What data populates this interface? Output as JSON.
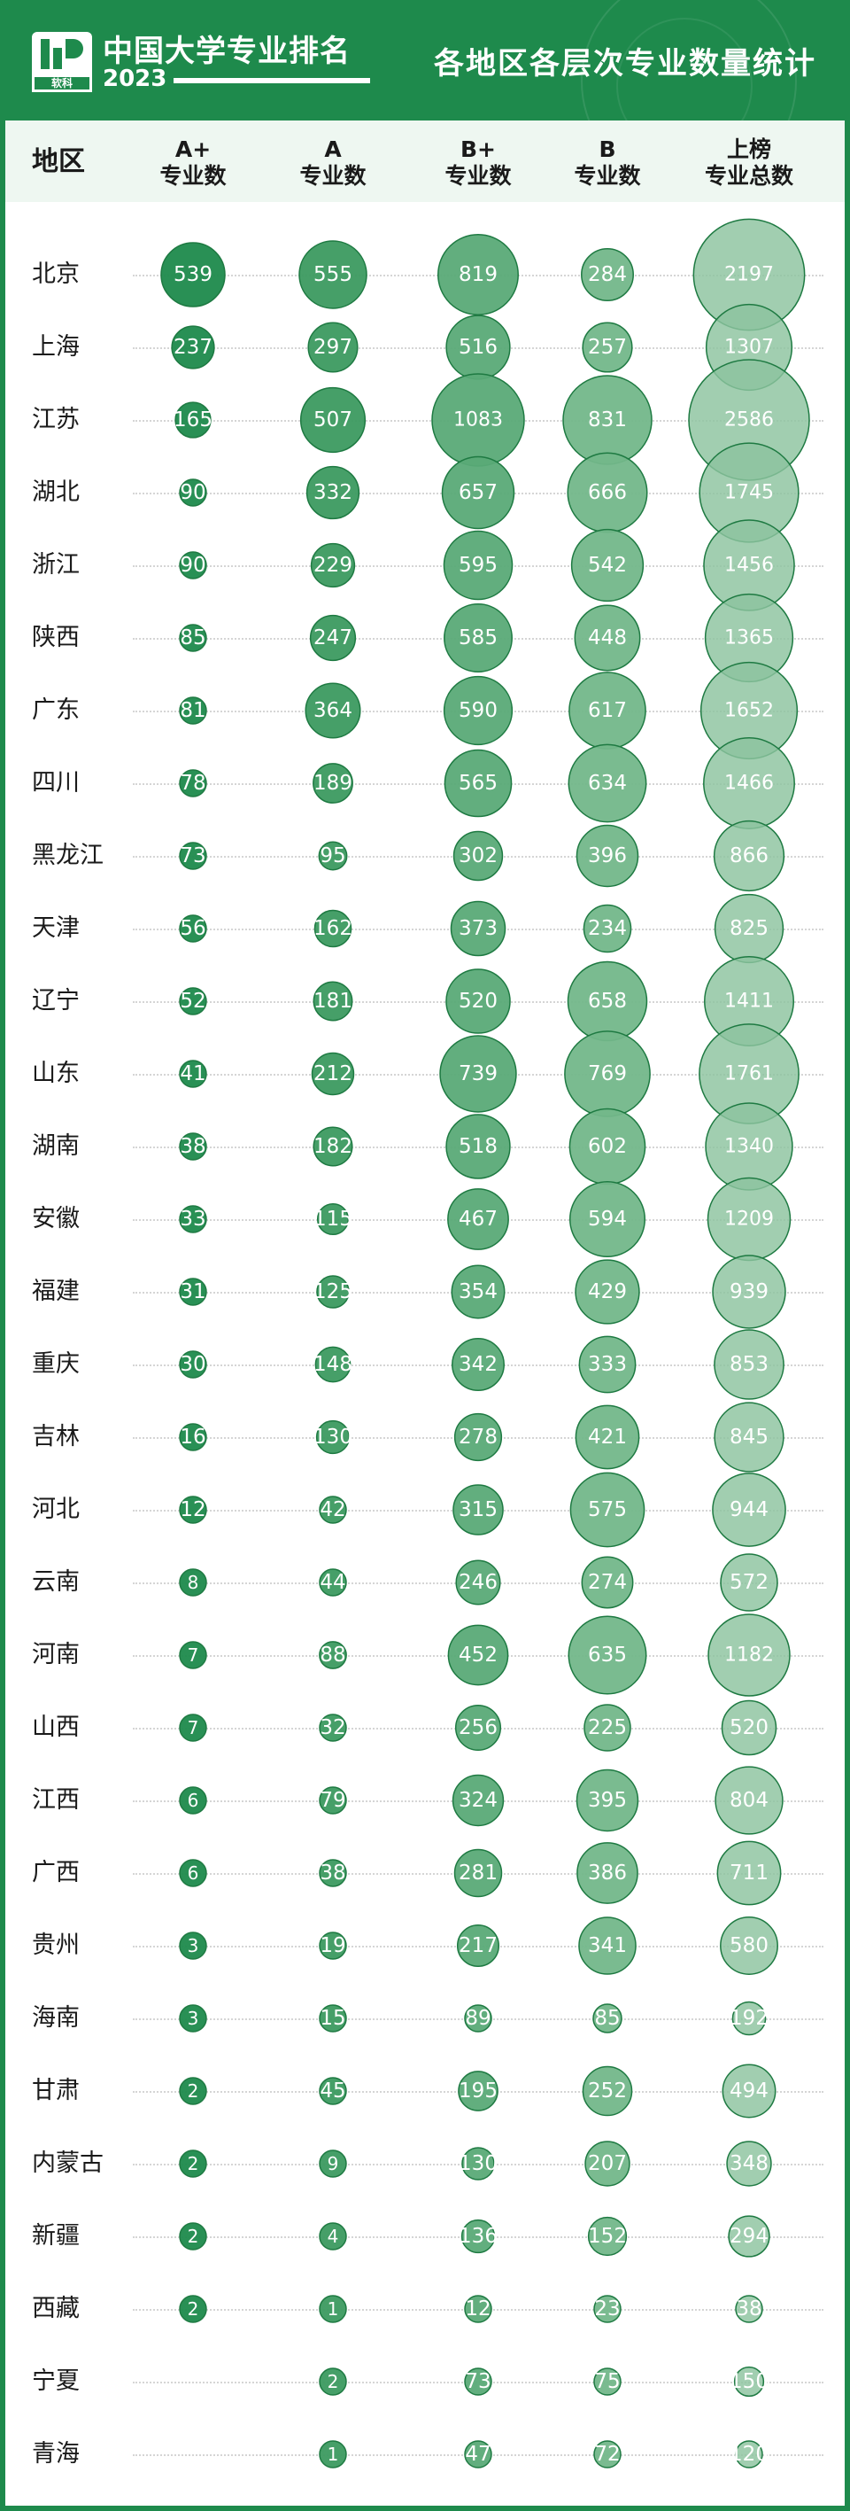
{
  "header": {
    "brand": "中国大学专业排名",
    "year": "2023",
    "logo_text": "软科",
    "title": "各地区各层次专业数量统计"
  },
  "colors": {
    "accent": "#1e8a4c",
    "header_bg": "#eef7f1"
  },
  "chart_data": {
    "type": "table",
    "title": "各地区各层次专业数量统计",
    "row_header": "地区",
    "columns": [
      {
        "key": "a_plus",
        "line1": "A+",
        "line2": "专业数"
      },
      {
        "key": "a",
        "line1": "A",
        "line2": "专业数"
      },
      {
        "key": "b_plus",
        "line1": "B+",
        "line2": "专业数"
      },
      {
        "key": "b",
        "line1": "B",
        "line2": "专业数"
      },
      {
        "key": "total",
        "line1": "上榜",
        "line2": "专业总数"
      }
    ],
    "rows": [
      {
        "region": "北京",
        "a_plus": 539,
        "a": 555,
        "b_plus": 819,
        "b": 284,
        "total": 2197
      },
      {
        "region": "上海",
        "a_plus": 237,
        "a": 297,
        "b_plus": 516,
        "b": 257,
        "total": 1307
      },
      {
        "region": "江苏",
        "a_plus": 165,
        "a": 507,
        "b_plus": 1083,
        "b": 831,
        "total": 2586
      },
      {
        "region": "湖北",
        "a_plus": 90,
        "a": 332,
        "b_plus": 657,
        "b": 666,
        "total": 1745
      },
      {
        "region": "浙江",
        "a_plus": 90,
        "a": 229,
        "b_plus": 595,
        "b": 542,
        "total": 1456
      },
      {
        "region": "陕西",
        "a_plus": 85,
        "a": 247,
        "b_plus": 585,
        "b": 448,
        "total": 1365
      },
      {
        "region": "广东",
        "a_plus": 81,
        "a": 364,
        "b_plus": 590,
        "b": 617,
        "total": 1652
      },
      {
        "region": "四川",
        "a_plus": 78,
        "a": 189,
        "b_plus": 565,
        "b": 634,
        "total": 1466
      },
      {
        "region": "黑龙江",
        "a_plus": 73,
        "a": 95,
        "b_plus": 302,
        "b": 396,
        "total": 866
      },
      {
        "region": "天津",
        "a_plus": 56,
        "a": 162,
        "b_plus": 373,
        "b": 234,
        "total": 825
      },
      {
        "region": "辽宁",
        "a_plus": 52,
        "a": 181,
        "b_plus": 520,
        "b": 658,
        "total": 1411
      },
      {
        "region": "山东",
        "a_plus": 41,
        "a": 212,
        "b_plus": 739,
        "b": 769,
        "total": 1761
      },
      {
        "region": "湖南",
        "a_plus": 38,
        "a": 182,
        "b_plus": 518,
        "b": 602,
        "total": 1340
      },
      {
        "region": "安徽",
        "a_plus": 33,
        "a": 115,
        "b_plus": 467,
        "b": 594,
        "total": 1209
      },
      {
        "region": "福建",
        "a_plus": 31,
        "a": 125,
        "b_plus": 354,
        "b": 429,
        "total": 939
      },
      {
        "region": "重庆",
        "a_plus": 30,
        "a": 148,
        "b_plus": 342,
        "b": 333,
        "total": 853
      },
      {
        "region": "吉林",
        "a_plus": 16,
        "a": 130,
        "b_plus": 278,
        "b": 421,
        "total": 845
      },
      {
        "region": "河北",
        "a_plus": 12,
        "a": 42,
        "b_plus": 315,
        "b": 575,
        "total": 944
      },
      {
        "region": "云南",
        "a_plus": 8,
        "a": 44,
        "b_plus": 246,
        "b": 274,
        "total": 572
      },
      {
        "region": "河南",
        "a_plus": 7,
        "a": 88,
        "b_plus": 452,
        "b": 635,
        "total": 1182
      },
      {
        "region": "山西",
        "a_plus": 7,
        "a": 32,
        "b_plus": 256,
        "b": 225,
        "total": 520
      },
      {
        "region": "江西",
        "a_plus": 6,
        "a": 79,
        "b_plus": 324,
        "b": 395,
        "total": 804
      },
      {
        "region": "广西",
        "a_plus": 6,
        "a": 38,
        "b_plus": 281,
        "b": 386,
        "total": 711
      },
      {
        "region": "贵州",
        "a_plus": 3,
        "a": 19,
        "b_plus": 217,
        "b": 341,
        "total": 580
      },
      {
        "region": "海南",
        "a_plus": 3,
        "a": 15,
        "b_plus": 89,
        "b": 85,
        "total": 192
      },
      {
        "region": "甘肃",
        "a_plus": 2,
        "a": 45,
        "b_plus": 195,
        "b": 252,
        "total": 494
      },
      {
        "region": "内蒙古",
        "a_plus": 2,
        "a": 9,
        "b_plus": 130,
        "b": 207,
        "total": 348
      },
      {
        "region": "新疆",
        "a_plus": 2,
        "a": 4,
        "b_plus": 136,
        "b": 152,
        "total": 294
      },
      {
        "region": "西藏",
        "a_plus": 2,
        "a": 1,
        "b_plus": 12,
        "b": 23,
        "total": 38
      },
      {
        "region": "宁夏",
        "a_plus": null,
        "a": 2,
        "b_plus": 73,
        "b": 75,
        "total": 150
      },
      {
        "region": "青海",
        "a_plus": null,
        "a": 1,
        "b_plus": 47,
        "b": 72,
        "total": 120
      }
    ]
  }
}
